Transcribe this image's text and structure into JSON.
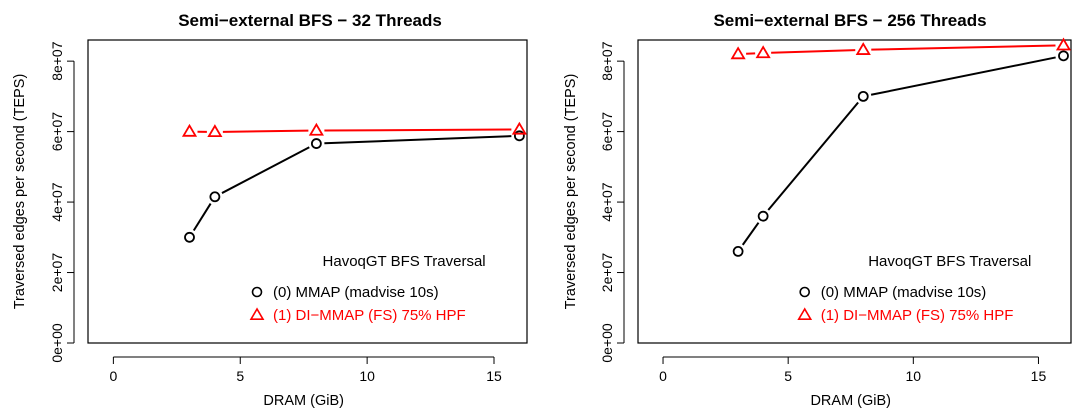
{
  "chart_data": [
    {
      "type": "line",
      "title": "Semi−external BFS − 32 Threads",
      "xlabel": "DRAM (GiB)",
      "ylabel": "Traversed edges per second (TEPS)",
      "xlim": [
        -1,
        16.3
      ],
      "ylim": [
        0,
        86000000
      ],
      "x_ticks": [
        0,
        5,
        10,
        15
      ],
      "x_tick_labels": [
        "0",
        "5",
        "10",
        "15"
      ],
      "y_ticks": [
        0,
        20000000,
        40000000,
        60000000,
        80000000
      ],
      "y_tick_labels": [
        "0e+00",
        "2e+07",
        "4e+07",
        "6e+07",
        "8e+07"
      ],
      "grid": false,
      "legend_position": "bottom-right",
      "legend_title": "HavoqGT BFS Traversal",
      "series": [
        {
          "name": "(0) MMAP (madvise 10s)",
          "color": "#000000",
          "marker": "circle",
          "line": "solid",
          "x": [
            3,
            4,
            8,
            16
          ],
          "y": [
            30000000,
            41500000,
            56600000,
            58800000
          ]
        },
        {
          "name": "(1) DI−MMAP (FS) 75% HPF",
          "color": "#ff0000",
          "marker": "triangle",
          "line": "solid",
          "x": [
            3,
            4,
            8,
            16
          ],
          "y": [
            60000000,
            59900000,
            60300000,
            60600000
          ]
        }
      ]
    },
    {
      "type": "line",
      "title": "Semi−external BFS − 256 Threads",
      "xlabel": "DRAM (GiB)",
      "ylabel": "Traversed edges per second (TEPS)",
      "xlim": [
        -1,
        16.3
      ],
      "ylim": [
        0,
        86000000
      ],
      "x_ticks": [
        0,
        5,
        10,
        15
      ],
      "x_tick_labels": [
        "0",
        "5",
        "10",
        "15"
      ],
      "y_ticks": [
        0,
        20000000,
        40000000,
        60000000,
        80000000
      ],
      "y_tick_labels": [
        "0e+00",
        "2e+07",
        "4e+07",
        "6e+07",
        "8e+07"
      ],
      "grid": false,
      "legend_position": "bottom-right",
      "legend_title": "HavoqGT BFS Traversal",
      "series": [
        {
          "name": "(0) MMAP (madvise 10s)",
          "color": "#000000",
          "marker": "circle",
          "line": "solid",
          "x": [
            3,
            4,
            8,
            16
          ],
          "y": [
            26000000,
            36000000,
            70000000,
            81500000
          ]
        },
        {
          "name": "(1) DI−MMAP (FS) 75% HPF",
          "color": "#ff0000",
          "marker": "triangle",
          "line": "solid",
          "x": [
            3,
            4,
            8,
            16
          ],
          "y": [
            82000000,
            82300000,
            83200000,
            84500000
          ]
        }
      ]
    }
  ]
}
